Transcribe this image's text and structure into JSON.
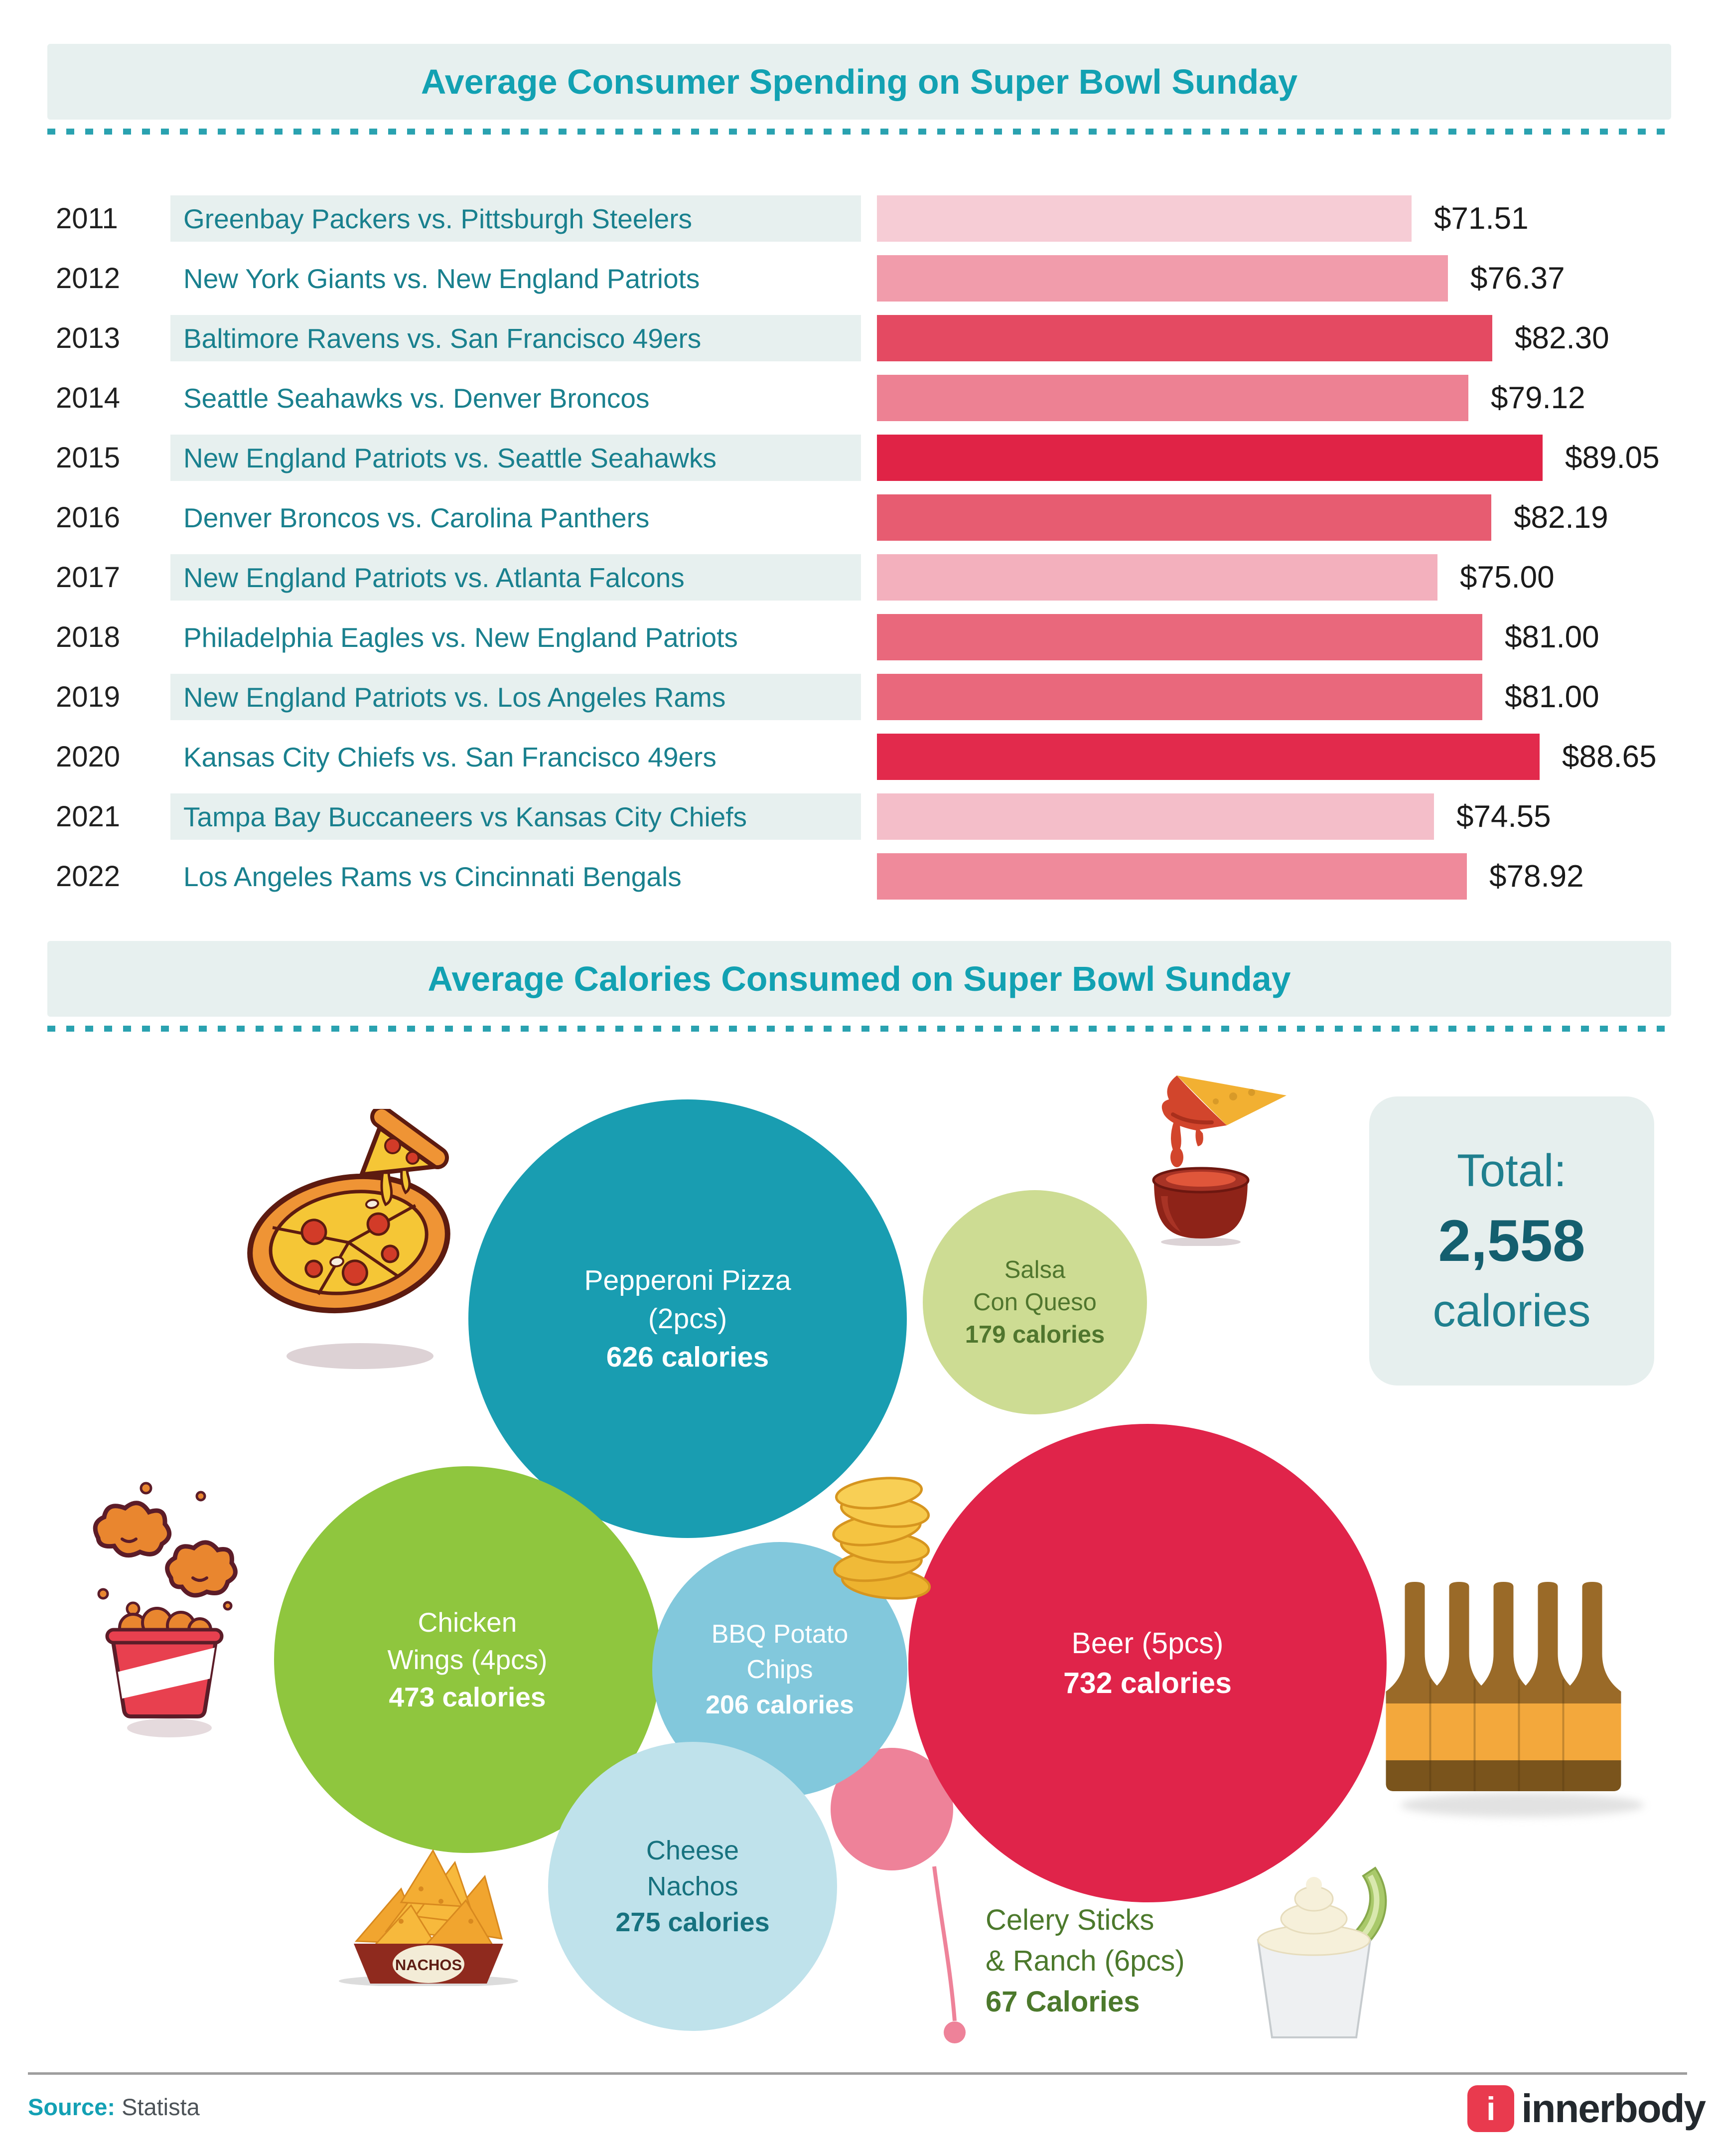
{
  "section1": {
    "title": "Average Consumer Spending on Super Bowl Sunday",
    "accent_color": "#12a1b2",
    "band_bg": "#e7f0ef",
    "matchup_color": "#19808e",
    "rows": [
      {
        "year": "2011",
        "matchup": "Greenbay Packers vs. Pittsburgh Steelers",
        "value": "$71.51",
        "amount": 71.51,
        "color": "#f6ccd5"
      },
      {
        "year": "2012",
        "matchup": "New York Giants vs. New England Patriots",
        "value": "$76.37",
        "amount": 76.37,
        "color": "#f19cab"
      },
      {
        "year": "2013",
        "matchup": "Baltimore Ravens vs. San Francisco 49ers",
        "value": "$82.30",
        "amount": 82.3,
        "color": "#e44a62"
      },
      {
        "year": "2014",
        "matchup": "Seattle Seahawks vs. Denver Broncos",
        "value": "$79.12",
        "amount": 79.12,
        "color": "#ed8193"
      },
      {
        "year": "2015",
        "matchup": "New England Patriots vs. Seattle Seahawks",
        "value": "$89.05",
        "amount": 89.05,
        "color": "#e02346"
      },
      {
        "year": "2016",
        "matchup": "Denver Broncos vs. Carolina Panthers",
        "value": "$82.19",
        "amount": 82.19,
        "color": "#e75c71"
      },
      {
        "year": "2017",
        "matchup": "New England Patriots vs. Atlanta Falcons",
        "value": "$75.00",
        "amount": 75.0,
        "color": "#f3b0bd"
      },
      {
        "year": "2018",
        "matchup": "Philadelphia Eagles vs. New England Patriots",
        "value": "$81.00",
        "amount": 81.0,
        "color": "#e9687c"
      },
      {
        "year": "2019",
        "matchup": "New England Patriots vs. Los Angeles Rams",
        "value": "$81.00",
        "amount": 81.0,
        "color": "#e9687c"
      },
      {
        "year": "2020",
        "matchup": "Kansas City Chiefs vs. San Francisco 49ers",
        "value": "$88.65",
        "amount": 88.65,
        "color": "#e22a4c"
      },
      {
        "year": "2021",
        "matchup": "Tampa Bay Buccaneers vs Kansas City Chiefs",
        "value": "$74.55",
        "amount": 74.55,
        "color": "#f4bec9"
      },
      {
        "year": "2022",
        "matchup": "Los Angeles Rams vs Cincinnati Bengals",
        "value": "$78.92",
        "amount": 78.92,
        "color": "#ef8a9b"
      }
    ]
  },
  "section2": {
    "title": "Average Calories Consumed on Super Bowl Sunday",
    "total": {
      "label": "Total:",
      "number": "2,558",
      "unit": "calories"
    },
    "bubbles": [
      {
        "name": "pepperoni-pizza",
        "lines": [
          "Pepperoni Pizza",
          "(2pcs)"
        ],
        "bold": "626 calories",
        "bg": "#199db1",
        "fg": "#ffffff"
      },
      {
        "name": "salsa-con-queso",
        "lines": [
          "Salsa",
          "Con Queso"
        ],
        "bold": "179 calories",
        "bg": "#cddc93",
        "fg": "#50762e"
      },
      {
        "name": "chicken-wings",
        "lines": [
          "Chicken",
          "Wings (4pcs)"
        ],
        "bold": "473 calories",
        "bg": "#8fc63e",
        "fg": "#ffffff"
      },
      {
        "name": "bbq-potato-chips",
        "lines": [
          "BBQ Potato",
          "Chips"
        ],
        "bold": "206 calories",
        "bg": "#82c8dc",
        "fg": "#ffffff"
      },
      {
        "name": "beer",
        "lines": [
          "Beer (5pcs)"
        ],
        "bold": "732 calories",
        "bg": "#e0244a",
        "fg": "#ffffff"
      },
      {
        "name": "cheese-nachos",
        "lines": [
          "Cheese",
          "Nachos"
        ],
        "bold": "275 calories",
        "bg": "#bfe2eb",
        "fg": "#17727f"
      },
      {
        "name": "celery-ranch",
        "lines": [],
        "bold": "",
        "bg": "#ee8299",
        "fg": ""
      }
    ],
    "callout": {
      "line1": "Celery Sticks",
      "line2": "& Ranch (6pcs)",
      "line3": "67 Calories",
      "color": "#4c792c"
    },
    "nachos_label": "NACHOS"
  },
  "footer": {
    "source_label": "Source:",
    "source_value": "Statista",
    "brand": "innerbody",
    "brand_initial": "i",
    "brand_color": "#e93a4e"
  },
  "chart_data": [
    {
      "type": "bar",
      "orientation": "horizontal",
      "title": "Average Consumer Spending on Super Bowl Sunday",
      "categories": [
        "2011",
        "2012",
        "2013",
        "2014",
        "2015",
        "2016",
        "2017",
        "2018",
        "2019",
        "2020",
        "2021",
        "2022"
      ],
      "matchups": [
        "Greenbay Packers vs. Pittsburgh Steelers",
        "New York Giants vs. New England Patriots",
        "Baltimore Ravens vs. San Francisco 49ers",
        "Seattle Seahawks vs. Denver Broncos",
        "New England Patriots vs. Seattle Seahawks",
        "Denver Broncos vs. Carolina Panthers",
        "New England Patriots vs. Atlanta Falcons",
        "Philadelphia Eagles vs. New England Patriots",
        "New England Patriots vs. Los Angeles Rams",
        "Kansas City Chiefs vs. San Francisco 49ers",
        "Tampa Bay Buccaneers vs Kansas City Chiefs",
        "Los Angeles Rams vs Cincinnati Bengals"
      ],
      "values": [
        71.51,
        76.37,
        82.3,
        79.12,
        89.05,
        82.19,
        75.0,
        81.0,
        81.0,
        88.65,
        74.55,
        78.92
      ],
      "value_labels": [
        "$71.51",
        "$76.37",
        "$82.30",
        "$79.12",
        "$89.05",
        "$82.19",
        "$75.00",
        "$81.00",
        "$81.00",
        "$88.65",
        "$74.55",
        "$78.92"
      ],
      "unit": "USD",
      "xlim": [
        0,
        95
      ],
      "grid": false,
      "legend": false
    },
    {
      "type": "bubble",
      "title": "Average Calories Consumed on Super Bowl Sunday",
      "unit": "calories",
      "items": [
        {
          "label": "Pepperoni Pizza (2pcs)",
          "calories": 626
        },
        {
          "label": "Salsa Con Queso",
          "calories": 179
        },
        {
          "label": "Chicken Wings (4pcs)",
          "calories": 473
        },
        {
          "label": "BBQ Potato Chips",
          "calories": 206
        },
        {
          "label": "Beer (5pcs)",
          "calories": 732
        },
        {
          "label": "Cheese Nachos",
          "calories": 275
        },
        {
          "label": "Celery Sticks & Ranch (6pcs)",
          "calories": 67
        }
      ],
      "total_calories": 2558
    }
  ]
}
